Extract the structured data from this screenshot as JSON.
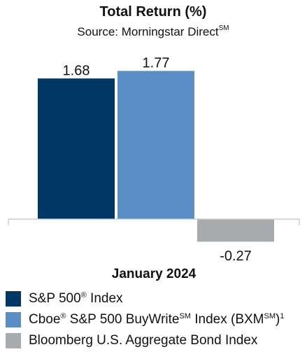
{
  "chart_data": {
    "type": "bar",
    "title": "Total Return (%)",
    "subtitle": "Source: Morningstar Direct",
    "subtitle_superscript": "SM",
    "xlabel": "January 2024",
    "ylabel": "",
    "categories": [
      "S&P 500® Index",
      "Cboe® S&P 500 BuyWrite℠ Index (BXM℠)¹",
      "Bloomberg U.S. Aggregate Bond Index"
    ],
    "series": [
      {
        "values": [
          1.68,
          1.77,
          -0.27
        ],
        "colors": [
          "#003764",
          "#5b8ec4",
          "#a7abad"
        ]
      }
    ],
    "data_labels": [
      "1.68",
      "1.77",
      "-0.27"
    ],
    "ylim": [
      -0.36,
      2.1
    ],
    "grid": false,
    "legend_position": "bottom-left"
  },
  "legend": [
    {
      "parts": [
        "S&P 500",
        "®",
        " Index"
      ],
      "color": "#003764"
    },
    {
      "parts": [
        "Cboe",
        "®",
        " S&P 500 BuyWrite",
        "SM",
        " Index (BXM",
        "SM",
        ")",
        "1"
      ],
      "color": "#5b8ec4"
    },
    {
      "parts": [
        "Bloomberg U.S. Aggregate Bond Index"
      ],
      "color": "#a7abad"
    }
  ],
  "colors": {
    "axis": "#c9c9c9",
    "text": "#111111"
  }
}
